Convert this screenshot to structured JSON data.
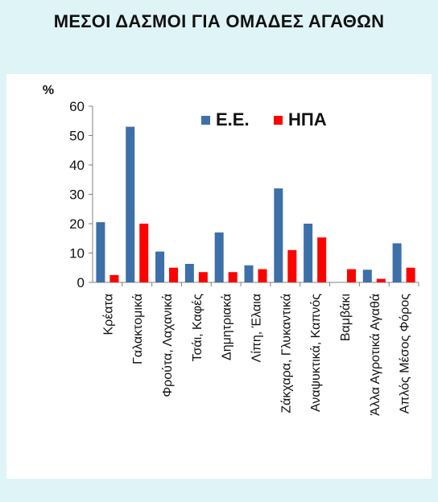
{
  "title": "ΜΕΣΟΙ ΔΑΣΜΟΙ ΓΙΑ ΟΜΑΔΕΣ ΑΓΑΘΩΝ",
  "chart_data": {
    "type": "bar",
    "ylabel": "%",
    "xlabel": "",
    "ylim": [
      0,
      60
    ],
    "yticks": [
      0,
      10,
      20,
      30,
      40,
      50,
      60
    ],
    "grid": false,
    "legend_position": "top-right",
    "categories": [
      "Κρέατα",
      "Γαλακτομικά",
      "Φρούτα, Λαχανικά",
      "Τσάι, Καφές",
      "Δημητριακά",
      "Λίπη, Έλαια",
      "Ζάκχαρα, Γλυκαντικά",
      "Αναψυκτικά, Καπνός",
      "Βαμβάκι",
      "Άλλα Αγροτικά Αγαθά",
      "Απλός Μέσος Φόρος"
    ],
    "series": [
      {
        "name": "Ε.Ε.",
        "color": "#3d6fa8",
        "values": [
          20.5,
          53,
          10.5,
          6.3,
          17,
          5.8,
          32,
          20,
          0,
          4.3,
          13.3
        ]
      },
      {
        "name": "ΗΠΑ",
        "color": "#ff0000",
        "values": [
          2.5,
          20,
          5,
          3.5,
          3.5,
          4.5,
          11,
          15.3,
          4.5,
          1.2,
          5
        ]
      }
    ]
  }
}
